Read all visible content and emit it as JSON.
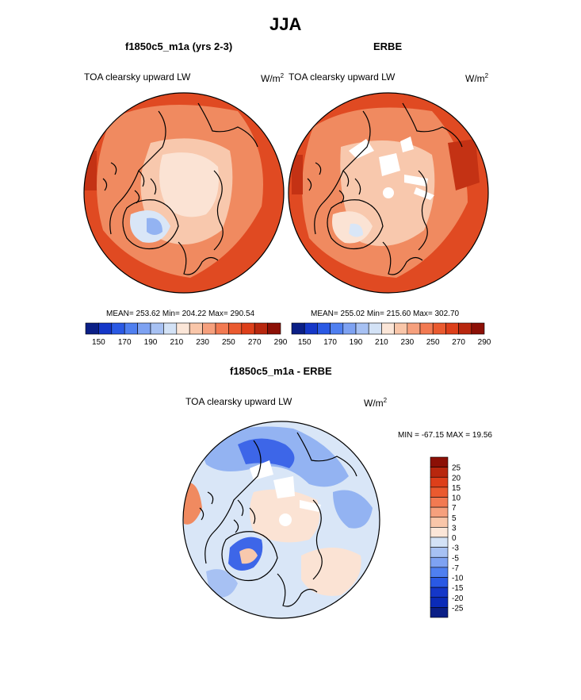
{
  "figure": {
    "title": "JJA"
  },
  "panel_left": {
    "title": "f1850c5_m1a (yrs 2-3)",
    "variable": "TOA clearsky upward LW",
    "units_base": "W/m",
    "units_exp": "2",
    "stats": "MEAN= 253.62  Min= 204.22  Max= 290.54"
  },
  "panel_right": {
    "title": "ERBE",
    "variable": "TOA clearsky upward LW",
    "units_base": "W/m",
    "units_exp": "2",
    "stats": "MEAN= 255.02  Min= 215.60  Max= 302.70"
  },
  "panel_diff": {
    "title": "f1850c5_m1a - ERBE",
    "variable": "TOA clearsky upward LW",
    "units_base": "W/m",
    "units_exp": "2",
    "minmax": "MIN = -67.15 MAX =  19.56"
  },
  "colorbar_abs": {
    "ticks": [
      "150",
      "170",
      "190",
      "210",
      "230",
      "250",
      "270",
      "290"
    ],
    "colors": [
      "#0b1f86",
      "#1537c8",
      "#2a59e4",
      "#4f7ff0",
      "#7ea2f2",
      "#a7c1f3",
      "#d3e2f6",
      "#fbe6d8",
      "#f9c6a9",
      "#f6a07d",
      "#f27a52",
      "#ea5a2f",
      "#dd3f1a",
      "#b8270e",
      "#8c1006"
    ]
  },
  "colorbar_diff": {
    "labels": [
      "25",
      "20",
      "15",
      "10",
      "7",
      "5",
      "3",
      "0",
      "-3",
      "-5",
      "-7",
      "-10",
      "-15",
      "-20",
      "-25"
    ],
    "colors": [
      "#8c1006",
      "#b8270e",
      "#dd3f1a",
      "#ea5a2f",
      "#f27a52",
      "#f6a07d",
      "#f9c6a9",
      "#fbe6d8",
      "#d3e2f6",
      "#a7c1f3",
      "#7ea2f2",
      "#4f7ff0",
      "#2a59e4",
      "#1537c8",
      "#0b2bb8",
      "#0b1f86"
    ]
  },
  "map_colors": {
    "warm_dark": "#e04a22",
    "warm_mid": "#f08a60",
    "warm_light": "#f8c8ad",
    "warm_pale": "#fbe3d4",
    "cool_pale": "#d9e6f7",
    "cool_mid": "#93b3f2",
    "cool_dark": "#3d66e8"
  }
}
